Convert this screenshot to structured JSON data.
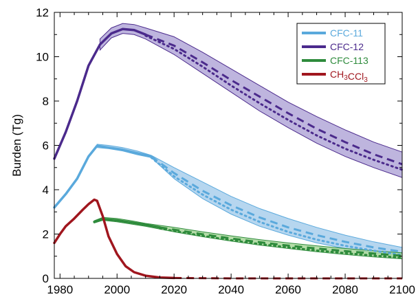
{
  "chart_data": {
    "type": "line",
    "ylabel": "Burden (Tg)",
    "xlim": [
      1978,
      2100
    ],
    "ylim": [
      0,
      12
    ],
    "x_ticks": [
      1980,
      2000,
      2020,
      2040,
      2060,
      2080,
      2100
    ],
    "y_ticks": [
      0,
      2,
      4,
      6,
      8,
      10,
      12
    ],
    "grid": false,
    "legend_position": "top-right",
    "legend": [
      {
        "label": "CFC-11",
        "sub": ""
      },
      {
        "label": "CFC-12",
        "sub": ""
      },
      {
        "label": "CFC-113",
        "sub": ""
      },
      {
        "label": "CH3CCl3",
        "sub": "CH₃CCl₃"
      }
    ],
    "colors": {
      "cfc11": "#5aa9dc",
      "cfc11_band": "#a9cfec",
      "cfc12": "#4b2a8c",
      "cfc12_band": "#b3a8d8",
      "cfc113": "#2e8b3c",
      "cfc113_band": "#a8d79a",
      "ch3ccl3": "#a0161e"
    },
    "series": [
      {
        "name": "CFC-12",
        "key": "cfc12",
        "observed": [
          [
            1978,
            5.4
          ],
          [
            1982,
            6.6
          ],
          [
            1986,
            8.0
          ],
          [
            1990,
            9.6
          ],
          [
            1994,
            10.55
          ],
          [
            1998,
            11.05
          ],
          [
            2002,
            11.25
          ],
          [
            2006,
            11.2
          ],
          [
            2010,
            11.0
          ]
        ],
        "band_upper": [
          [
            1994,
            10.8
          ],
          [
            1998,
            11.3
          ],
          [
            2002,
            11.5
          ],
          [
            2006,
            11.45
          ],
          [
            2010,
            11.3
          ],
          [
            2020,
            10.9
          ],
          [
            2030,
            10.2
          ],
          [
            2040,
            9.45
          ],
          [
            2050,
            8.7
          ],
          [
            2060,
            7.95
          ],
          [
            2070,
            7.3
          ],
          [
            2080,
            6.7
          ],
          [
            2090,
            6.15
          ],
          [
            2100,
            5.7
          ]
        ],
        "band_lower": [
          [
            1994,
            10.3
          ],
          [
            1998,
            10.85
          ],
          [
            2002,
            11.05
          ],
          [
            2006,
            11.0
          ],
          [
            2010,
            10.8
          ],
          [
            2020,
            10.1
          ],
          [
            2030,
            9.25
          ],
          [
            2040,
            8.4
          ],
          [
            2050,
            7.55
          ],
          [
            2060,
            6.8
          ],
          [
            2070,
            6.1
          ],
          [
            2080,
            5.5
          ],
          [
            2090,
            5.0
          ],
          [
            2100,
            4.55
          ]
        ],
        "projection_dashed": [
          [
            2010,
            11.0
          ],
          [
            2020,
            10.5
          ],
          [
            2030,
            9.75
          ],
          [
            2040,
            8.95
          ],
          [
            2050,
            8.2
          ],
          [
            2060,
            7.45
          ],
          [
            2070,
            6.75
          ],
          [
            2080,
            6.15
          ],
          [
            2090,
            5.6
          ],
          [
            2100,
            5.15
          ]
        ],
        "projection_dotted": [
          [
            2010,
            10.95
          ],
          [
            2020,
            10.35
          ],
          [
            2030,
            9.55
          ],
          [
            2040,
            8.7
          ],
          [
            2050,
            7.9
          ],
          [
            2060,
            7.15
          ],
          [
            2070,
            6.45
          ],
          [
            2080,
            5.85
          ],
          [
            2090,
            5.35
          ],
          [
            2100,
            4.9
          ]
        ]
      },
      {
        "name": "CFC-11",
        "key": "cfc11",
        "observed": [
          [
            1978,
            3.2
          ],
          [
            1982,
            3.8
          ],
          [
            1986,
            4.5
          ],
          [
            1990,
            5.5
          ],
          [
            1993,
            5.98
          ],
          [
            1997,
            5.9
          ],
          [
            2002,
            5.8
          ],
          [
            2007,
            5.65
          ],
          [
            2012,
            5.5
          ]
        ],
        "band_upper": [
          [
            1993,
            6.05
          ],
          [
            1997,
            6.0
          ],
          [
            2002,
            5.9
          ],
          [
            2007,
            5.75
          ],
          [
            2012,
            5.55
          ],
          [
            2020,
            5.0
          ],
          [
            2030,
            4.35
          ],
          [
            2040,
            3.7
          ],
          [
            2050,
            3.15
          ],
          [
            2060,
            2.7
          ],
          [
            2070,
            2.3
          ],
          [
            2080,
            1.95
          ],
          [
            2090,
            1.65
          ],
          [
            2100,
            1.4
          ]
        ],
        "band_lower": [
          [
            1993,
            5.9
          ],
          [
            1997,
            5.85
          ],
          [
            2002,
            5.75
          ],
          [
            2007,
            5.58
          ],
          [
            2012,
            5.45
          ],
          [
            2020,
            4.5
          ],
          [
            2030,
            3.6
          ],
          [
            2040,
            2.9
          ],
          [
            2050,
            2.35
          ],
          [
            2060,
            1.95
          ],
          [
            2070,
            1.6
          ],
          [
            2080,
            1.35
          ],
          [
            2090,
            1.15
          ],
          [
            2100,
            1.0
          ]
        ],
        "projection_dashed": [
          [
            2012,
            5.5
          ],
          [
            2020,
            4.75
          ],
          [
            2030,
            3.95
          ],
          [
            2040,
            3.3
          ],
          [
            2050,
            2.75
          ],
          [
            2060,
            2.3
          ],
          [
            2070,
            1.95
          ],
          [
            2080,
            1.65
          ],
          [
            2090,
            1.4
          ],
          [
            2100,
            1.2
          ]
        ],
        "projection_dotted": [
          [
            2012,
            5.45
          ],
          [
            2020,
            4.6
          ],
          [
            2030,
            3.78
          ],
          [
            2040,
            3.1
          ],
          [
            2050,
            2.55
          ],
          [
            2060,
            2.1
          ],
          [
            2070,
            1.75
          ],
          [
            2080,
            1.47
          ],
          [
            2090,
            1.25
          ],
          [
            2100,
            1.05
          ]
        ]
      },
      {
        "name": "CFC-113",
        "key": "cfc113",
        "observed": [
          [
            1992,
            2.55
          ],
          [
            1995,
            2.68
          ],
          [
            2000,
            2.62
          ],
          [
            2005,
            2.52
          ],
          [
            2010,
            2.42
          ],
          [
            2015,
            2.3
          ]
        ],
        "band_upper": [
          [
            1992,
            2.6
          ],
          [
            1995,
            2.75
          ],
          [
            2000,
            2.7
          ],
          [
            2005,
            2.6
          ],
          [
            2010,
            2.48
          ],
          [
            2020,
            2.3
          ],
          [
            2030,
            2.1
          ],
          [
            2040,
            1.92
          ],
          [
            2050,
            1.75
          ],
          [
            2060,
            1.6
          ],
          [
            2070,
            1.47
          ],
          [
            2080,
            1.35
          ],
          [
            2090,
            1.25
          ],
          [
            2100,
            1.15
          ]
        ],
        "band_lower": [
          [
            1992,
            2.5
          ],
          [
            1995,
            2.62
          ],
          [
            2000,
            2.55
          ],
          [
            2005,
            2.45
          ],
          [
            2010,
            2.35
          ],
          [
            2020,
            2.1
          ],
          [
            2030,
            1.88
          ],
          [
            2040,
            1.68
          ],
          [
            2050,
            1.5
          ],
          [
            2060,
            1.35
          ],
          [
            2070,
            1.2
          ],
          [
            2080,
            1.08
          ],
          [
            2090,
            0.97
          ],
          [
            2100,
            0.88
          ]
        ],
        "projection_dashed": [
          [
            2015,
            2.3
          ],
          [
            2020,
            2.2
          ],
          [
            2030,
            1.99
          ],
          [
            2040,
            1.8
          ],
          [
            2050,
            1.63
          ],
          [
            2060,
            1.48
          ],
          [
            2070,
            1.35
          ],
          [
            2080,
            1.23
          ],
          [
            2090,
            1.12
          ],
          [
            2100,
            1.02
          ]
        ],
        "projection_dotted": [
          [
            2015,
            2.25
          ],
          [
            2020,
            2.14
          ],
          [
            2030,
            1.92
          ],
          [
            2040,
            1.72
          ],
          [
            2050,
            1.55
          ],
          [
            2060,
            1.4
          ],
          [
            2070,
            1.26
          ],
          [
            2080,
            1.14
          ],
          [
            2090,
            1.03
          ],
          [
            2100,
            0.93
          ]
        ]
      },
      {
        "name": "CH3CCl3",
        "key": "ch3ccl3",
        "observed": [
          [
            1978,
            1.6
          ],
          [
            1980,
            2.0
          ],
          [
            1982,
            2.35
          ],
          [
            1985,
            2.7
          ],
          [
            1988,
            3.1
          ],
          [
            1990,
            3.35
          ],
          [
            1992,
            3.55
          ],
          [
            1993,
            3.5
          ],
          [
            1995,
            2.8
          ],
          [
            1997,
            1.9
          ],
          [
            2000,
            1.1
          ],
          [
            2003,
            0.55
          ],
          [
            2006,
            0.28
          ],
          [
            2010,
            0.12
          ],
          [
            2015,
            0.04
          ],
          [
            2020,
            0.02
          ]
        ],
        "projection_dashed": [
          [
            2020,
            0.02
          ],
          [
            2040,
            0.0
          ],
          [
            2060,
            0.0
          ],
          [
            2080,
            0.0
          ],
          [
            2100,
            0.0
          ]
        ]
      }
    ]
  }
}
